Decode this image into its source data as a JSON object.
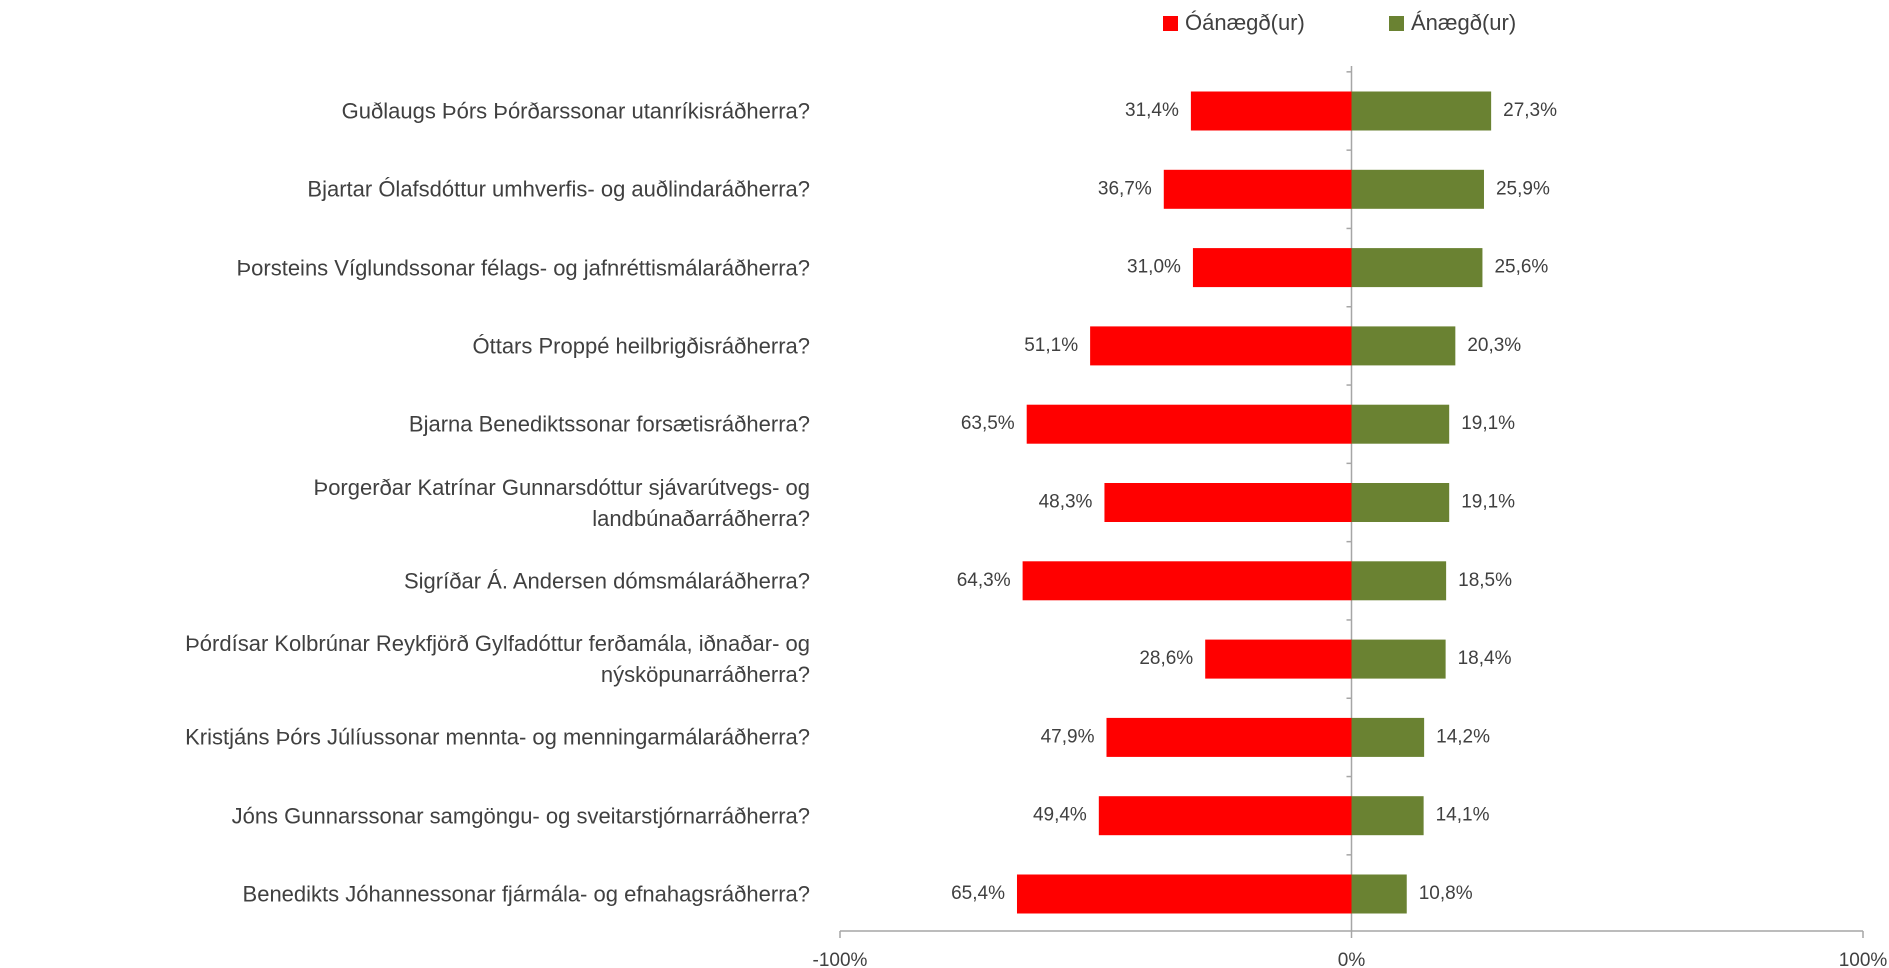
{
  "chart_data": {
    "type": "diverging_bar",
    "categories": [
      "Guðlaugs Þórs Þórðarssonar utanríkisráðherra?",
      "Bjartar Ólafsdóttur umhverfis- og auðlindaráðherra?",
      "Þorsteins Víglundssonar félags- og jafnréttismálaráðherra?",
      "Óttars Proppé heilbrigðisráðherra?",
      "Bjarna Benediktssonar forsætisráðherra?",
      "Þorgerðar Katrínar Gunnarsdóttur sjávarútvegs- og landbúnaðarráðherra?",
      "Sigríðar Á. Andersen dómsmálaráðherra?",
      "Þórdísar Kolbrúnar Reykfjörð Gylfadóttur ferðamála, iðnaðar- og nýsköpunarráðherra?",
      "Kristjáns Þórs Júlíussonar mennta- og menningarmálaráðherra?",
      "Jóns Gunnarssonar samgöngu- og sveitarstjórnarráðherra?",
      "Benedikts Jóhannessonar fjármála- og efnahagsráðherra?"
    ],
    "series": [
      {
        "name": "Óánægð(ur)",
        "color": "#ff0000",
        "values": [
          -31.4,
          -36.7,
          -31.0,
          -51.1,
          -63.5,
          -48.3,
          -64.3,
          -28.6,
          -47.9,
          -49.4,
          -65.4
        ],
        "value_labels": [
          "31,4%",
          "36,7%",
          "31,0%",
          "51,1%",
          "63,5%",
          "48,3%",
          "64,3%",
          "28,6%",
          "47,9%",
          "49,4%",
          "65,4%"
        ]
      },
      {
        "name": "Ánægð(ur)",
        "color": "#6a8232",
        "values": [
          27.3,
          25.9,
          25.6,
          20.3,
          19.1,
          19.1,
          18.5,
          18.4,
          14.2,
          14.1,
          10.8
        ],
        "value_labels": [
          "27,3%",
          "25,9%",
          "25,6%",
          "20,3%",
          "19,1%",
          "19,1%",
          "18,5%",
          "18,4%",
          "14,2%",
          "14,1%",
          "10,8%"
        ]
      }
    ],
    "xlim": [
      -100,
      100
    ],
    "xticks": [
      {
        "value": -100,
        "label": "-100%"
      },
      {
        "value": 0,
        "label": "0%"
      },
      {
        "value": 100,
        "label": "100%"
      }
    ],
    "legend": "top"
  }
}
